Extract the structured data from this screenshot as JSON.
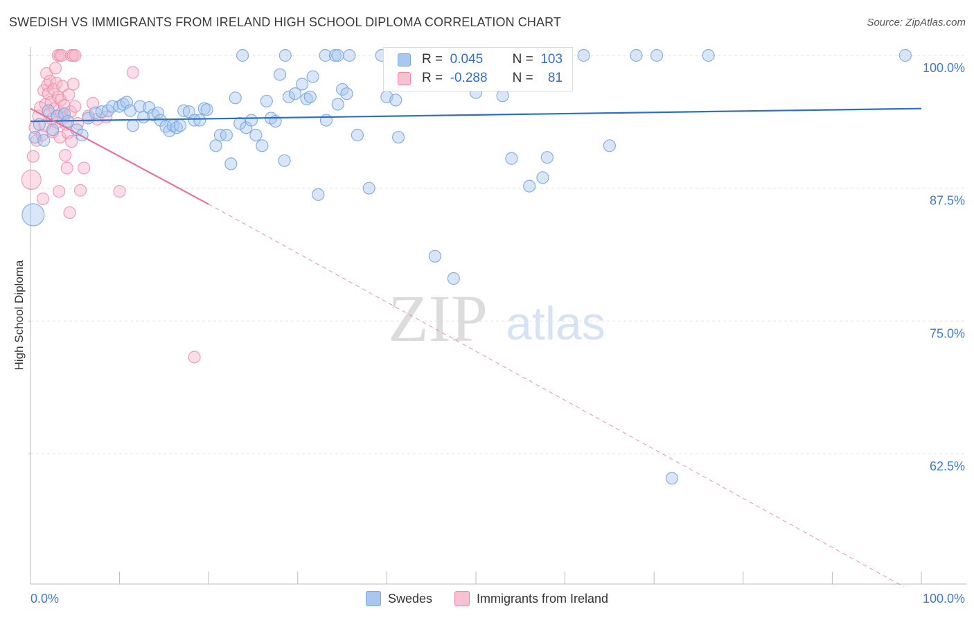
{
  "title": "SWEDISH VS IMMIGRANTS FROM IRELAND HIGH SCHOOL DIPLOMA CORRELATION CHART",
  "source": "Source: ZipAtlas.com",
  "watermark": {
    "zip": "ZIP",
    "atlas": "atlas"
  },
  "legend_top": {
    "rows": [
      {
        "r_label": "R =",
        "r_value": "0.045",
        "n_label": "N =",
        "n_value": "103"
      },
      {
        "r_label": "R =",
        "r_value": "-0.288",
        "n_label": "N =",
        "n_value": "81"
      }
    ]
  },
  "colors": {
    "blue_fill": "#a9c8f0",
    "blue_stroke": "#7aa7e0",
    "blue_line": "#2b6fcb",
    "pink_fill": "#f6b6c9",
    "pink_stroke": "#ee8aa8",
    "pink_line": "#e8739a",
    "axis_text": "#3d7ad6",
    "grid": "#e0e0e0"
  },
  "chart_data": {
    "type": "scatter",
    "title": "SWEDISH VS IMMIGRANTS FROM IRELAND HIGH SCHOOL DIPLOMA CORRELATION CHART",
    "xlabel": "",
    "ylabel": "High School Diploma",
    "xlim": [
      0,
      100
    ],
    "ylim": [
      50,
      101.5
    ],
    "x_tick_labels": [
      "0.0%",
      "100.0%"
    ],
    "y_ticks": [
      62.5,
      75.0,
      87.5,
      100.0
    ],
    "y_tick_labels": [
      "62.5%",
      "75.0%",
      "87.5%",
      "100.0%"
    ],
    "grid": true,
    "legend_placement": "bottom",
    "series": [
      {
        "name": "Swedes",
        "r": 0.045,
        "n": 103,
        "trend": {
          "x": [
            0,
            100
          ],
          "y": [
            93.8,
            95.0
          ]
        },
        "points": [
          [
            0.3,
            85.0
          ],
          [
            0.5,
            92.3
          ],
          [
            1.0,
            93.5
          ],
          [
            1.5,
            92.0
          ],
          [
            2.0,
            94.8
          ],
          [
            2.5,
            93.0
          ],
          [
            3.0,
            94.3
          ],
          [
            3.8,
            94.5
          ],
          [
            4.2,
            93.8
          ],
          [
            5.2,
            93.0
          ],
          [
            5.8,
            92.5
          ],
          [
            6.5,
            94.1
          ],
          [
            7.3,
            94.6
          ],
          [
            8.0,
            94.7
          ],
          [
            8.7,
            94.8
          ],
          [
            9.2,
            95.2
          ],
          [
            10.0,
            95.2
          ],
          [
            10.4,
            95.4
          ],
          [
            10.8,
            95.6
          ],
          [
            11.2,
            94.8
          ],
          [
            11.5,
            93.4
          ],
          [
            12.3,
            95.2
          ],
          [
            12.7,
            94.2
          ],
          [
            13.3,
            95.1
          ],
          [
            13.8,
            94.4
          ],
          [
            14.3,
            94.6
          ],
          [
            14.6,
            93.9
          ],
          [
            15.2,
            93.3
          ],
          [
            15.6,
            92.9
          ],
          [
            16.0,
            93.4
          ],
          [
            16.4,
            93.2
          ],
          [
            16.8,
            93.4
          ],
          [
            17.2,
            94.8
          ],
          [
            17.8,
            94.7
          ],
          [
            18.4,
            93.9
          ],
          [
            19.0,
            93.9
          ],
          [
            19.5,
            95.0
          ],
          [
            19.8,
            94.9
          ],
          [
            20.8,
            91.5
          ],
          [
            21.3,
            92.5
          ],
          [
            22.0,
            92.5
          ],
          [
            22.5,
            89.8
          ],
          [
            23.0,
            96.0
          ],
          [
            23.5,
            93.6
          ],
          [
            24.2,
            93.2
          ],
          [
            24.8,
            93.9
          ],
          [
            25.3,
            92.5
          ],
          [
            26.0,
            91.5
          ],
          [
            26.5,
            95.7
          ],
          [
            27.0,
            94.1
          ],
          [
            27.5,
            93.8
          ],
          [
            28.0,
            98.2
          ],
          [
            28.5,
            90.1
          ],
          [
            29.0,
            96.1
          ],
          [
            29.7,
            96.4
          ],
          [
            30.5,
            97.3
          ],
          [
            31.0,
            95.9
          ],
          [
            31.4,
            96.1
          ],
          [
            31.7,
            98.0
          ],
          [
            32.3,
            86.9
          ],
          [
            33.2,
            93.9
          ],
          [
            34.5,
            95.4
          ],
          [
            35.0,
            96.8
          ],
          [
            35.5,
            96.4
          ],
          [
            36.7,
            92.5
          ],
          [
            38.0,
            87.5
          ],
          [
            40.0,
            96.1
          ],
          [
            41.0,
            95.8
          ],
          [
            41.3,
            92.3
          ],
          [
            45.4,
            81.1
          ],
          [
            47.5,
            79.0
          ],
          [
            50.0,
            96.5
          ],
          [
            53.0,
            96.2
          ],
          [
            54.0,
            90.3
          ],
          [
            56.0,
            87.7
          ],
          [
            57.5,
            88.5
          ],
          [
            58.0,
            90.4
          ],
          [
            65.0,
            91.5
          ],
          [
            72.0,
            60.2
          ],
          [
            23.8,
            100.0
          ],
          [
            28.6,
            100.0
          ],
          [
            33.1,
            100.0
          ],
          [
            34.2,
            100.0
          ],
          [
            34.5,
            100.0
          ],
          [
            35.8,
            100.0
          ],
          [
            39.4,
            100.0
          ],
          [
            43.2,
            100.0
          ],
          [
            46.5,
            100.0
          ],
          [
            49.7,
            100.0
          ],
          [
            53.5,
            100.0
          ],
          [
            58.3,
            100.0
          ],
          [
            62.1,
            100.0
          ],
          [
            68.0,
            100.0
          ],
          [
            70.3,
            100.0
          ],
          [
            76.1,
            100.0
          ],
          [
            98.2,
            100.0
          ]
        ]
      },
      {
        "name": "Immigrants from Ireland",
        "r": -0.288,
        "n": 81,
        "trend": {
          "x": [
            0,
            20
          ],
          "y": [
            95.0,
            86.0
          ]
        },
        "trend_dashed": {
          "x": [
            20,
            98
          ],
          "y": [
            86.0,
            50.0
          ]
        },
        "points": [
          [
            0.1,
            88.3
          ],
          [
            0.3,
            90.5
          ],
          [
            0.5,
            93.2
          ],
          [
            0.7,
            92.0
          ],
          [
            0.9,
            94.3
          ],
          [
            1.1,
            95.1
          ],
          [
            1.3,
            92.5
          ],
          [
            1.4,
            86.5
          ],
          [
            1.5,
            96.7
          ],
          [
            1.6,
            93.4
          ],
          [
            1.7,
            95.4
          ],
          [
            1.8,
            98.3
          ],
          [
            1.9,
            97.2
          ],
          [
            2.0,
            96.4
          ],
          [
            2.1,
            94.5
          ],
          [
            2.2,
            97.6
          ],
          [
            2.3,
            95.6
          ],
          [
            2.4,
            94.0
          ],
          [
            2.5,
            92.8
          ],
          [
            2.6,
            96.8
          ],
          [
            2.7,
            95.0
          ],
          [
            2.8,
            98.8
          ],
          [
            2.9,
            97.4
          ],
          [
            3.0,
            93.7
          ],
          [
            3.1,
            96.1
          ],
          [
            3.2,
            87.2
          ],
          [
            3.3,
            92.3
          ],
          [
            3.4,
            95.8
          ],
          [
            3.5,
            94.6
          ],
          [
            3.6,
            97.1
          ],
          [
            3.7,
            94.1
          ],
          [
            3.8,
            95.3
          ],
          [
            3.9,
            90.6
          ],
          [
            4.0,
            93.5
          ],
          [
            4.1,
            89.4
          ],
          [
            4.2,
            92.7
          ],
          [
            4.3,
            96.3
          ],
          [
            4.4,
            85.2
          ],
          [
            4.5,
            94.7
          ],
          [
            4.6,
            91.9
          ],
          [
            4.8,
            97.3
          ],
          [
            5.0,
            95.2
          ],
          [
            5.3,
            93.6
          ],
          [
            5.6,
            87.3
          ],
          [
            6.0,
            89.4
          ],
          [
            6.5,
            94.3
          ],
          [
            7.0,
            95.5
          ],
          [
            7.5,
            94.0
          ],
          [
            8.5,
            94.2
          ],
          [
            10.0,
            87.2
          ],
          [
            11.5,
            98.4
          ],
          [
            18.4,
            71.6
          ],
          [
            3.1,
            100.0
          ],
          [
            3.3,
            100.0
          ],
          [
            3.5,
            100.0
          ],
          [
            4.6,
            100.0
          ],
          [
            4.8,
            100.0
          ],
          [
            5.0,
            100.0
          ]
        ]
      }
    ]
  }
}
